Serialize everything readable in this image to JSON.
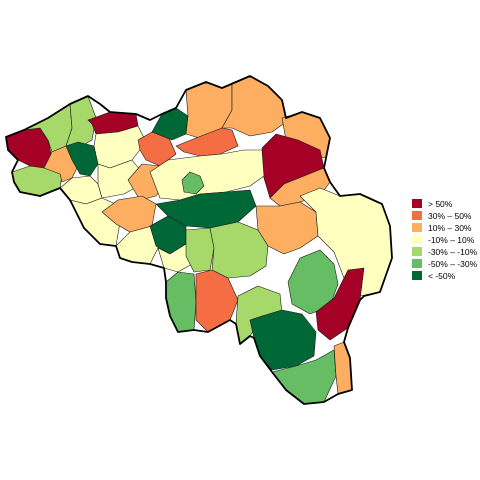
{
  "palette": {
    "dark_red": "#a50026",
    "orange": "#f46d43",
    "light_orange": "#fdae61",
    "pale_yellow": "#ffffbf",
    "light_green": "#a6d96a",
    "mid_green": "#66bd63",
    "dark_green": "#006837"
  },
  "legend": {
    "items": [
      {
        "label": "> 50%",
        "color": "#a50026"
      },
      {
        "label": "30%  –  50%",
        "color": "#f46d43"
      },
      {
        "label": "10%  –  30%",
        "color": "#fdae61"
      },
      {
        "label": "-10%  –  10%",
        "color": "#ffffbf"
      },
      {
        "label": "-30%  – -10%",
        "color": "#a6d96a"
      },
      {
        "label": "-50%  –  -30%",
        "color": "#66bd63"
      },
      {
        "label": "< -50%",
        "color": "#006837"
      }
    ]
  }
}
